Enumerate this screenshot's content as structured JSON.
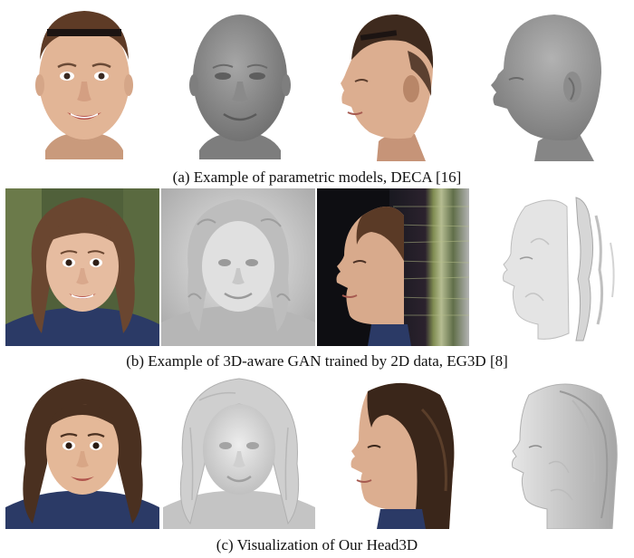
{
  "figure": {
    "rows": [
      {
        "caption": "(a) Example of parametric models, DECA [16]",
        "panels": [
          {
            "kind": "textured-front"
          },
          {
            "kind": "mesh-front"
          },
          {
            "kind": "textured-side"
          },
          {
            "kind": "mesh-side"
          }
        ]
      },
      {
        "caption": "(b) Example of 3D-aware GAN trained by 2D data, EG3D [8]",
        "panels": [
          {
            "kind": "photo-front"
          },
          {
            "kind": "mesh-relief-front"
          },
          {
            "kind": "render-side-streaks"
          },
          {
            "kind": "mesh-side-broken"
          }
        ]
      },
      {
        "caption": "(c) Visualization of Our Head3D",
        "panels": [
          {
            "kind": "photo-front"
          },
          {
            "kind": "mesh-hair-front"
          },
          {
            "kind": "render-side"
          },
          {
            "kind": "mesh-side-hair"
          }
        ]
      }
    ],
    "colors": {
      "skin": "#e2b596",
      "mesh": "#8c8c8c",
      "mesh_light": "#d9d9d9",
      "hair_brown": "#5a3a24",
      "hair_dark": "#2e2018",
      "jacket": "#2b3a66"
    }
  }
}
